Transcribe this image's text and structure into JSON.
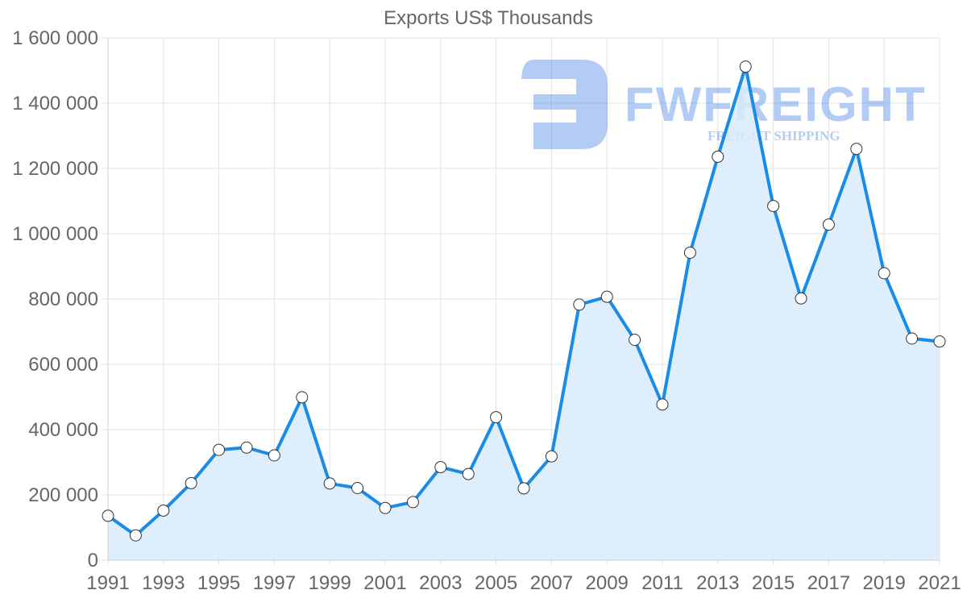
{
  "chart_data": {
    "type": "line",
    "title": "Exports US$ Thousands",
    "xlabel": "",
    "ylabel": "",
    "ylim": [
      0,
      1600000
    ],
    "grid": true,
    "legend": "none",
    "fill": true,
    "x": [
      1991,
      1992,
      1993,
      1994,
      1995,
      1996,
      1997,
      1998,
      1999,
      2000,
      2001,
      2002,
      2003,
      2004,
      2005,
      2006,
      2007,
      2008,
      2009,
      2010,
      2011,
      2012,
      2013,
      2014,
      2015,
      2016,
      2017,
      2018,
      2019,
      2020,
      2021
    ],
    "series": [
      {
        "name": "Exports US$ Thousands",
        "values": [
          136000,
          76000,
          152000,
          236000,
          338000,
          345000,
          321000,
          499000,
          235000,
          221000,
          160000,
          178000,
          285000,
          264000,
          438000,
          220000,
          318000,
          783000,
          807000,
          675000,
          477000,
          942000,
          1236000,
          1512000,
          1085000,
          802000,
          1028000,
          1260000,
          879000,
          679000,
          670000
        ]
      }
    ],
    "y_ticks": [
      0,
      200000,
      400000,
      600000,
      800000,
      1000000,
      1200000,
      1400000,
      1600000
    ],
    "y_tick_labels": [
      "0",
      "200 000",
      "400 000",
      "600 000",
      "800 000",
      "1 000 000",
      "1 200 000",
      "1 400 000",
      "1 600 000"
    ],
    "x_tick_labels": [
      "1991",
      "1993",
      "1995",
      "1997",
      "1999",
      "2001",
      "2003",
      "2005",
      "2007",
      "2009",
      "2011",
      "2013",
      "2015",
      "2017",
      "2019",
      "2021"
    ],
    "colors": {
      "line": "#1a8ce8",
      "fill": "#d8ebfb",
      "point_fill": "#ffffff",
      "point_border": "#333333",
      "grid": "#e3e3e3",
      "text": "#666666"
    }
  },
  "watermark": {
    "brand": "FWFREIGHT",
    "tagline": "FREIGHT SHIPPING"
  }
}
